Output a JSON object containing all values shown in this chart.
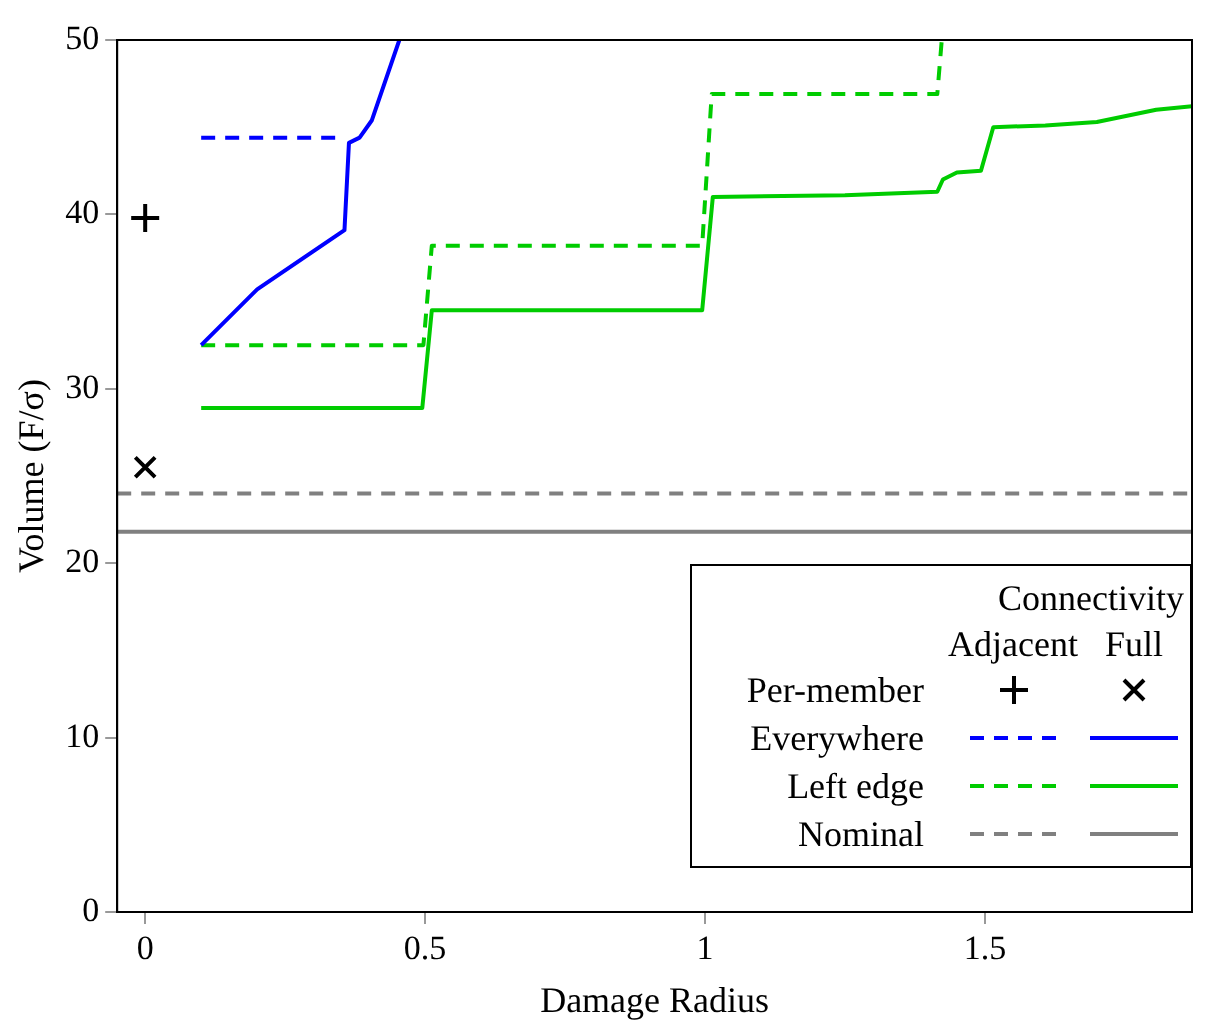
{
  "chart_data": {
    "type": "line",
    "xlabel": "Damage Radius",
    "ylabel": "Volume (F/σ)",
    "legend_title": "Connectivity",
    "annotations": [
      "Adjacent",
      "Full"
    ],
    "xlim": [
      -0.05,
      1.87
    ],
    "ylim": [
      0,
      50
    ],
    "xticks": [
      0,
      0.5,
      1,
      1.5
    ],
    "yticks": [
      0,
      10,
      20,
      30,
      40,
      50
    ],
    "grid": false,
    "legend": "bottom right",
    "series": [
      {
        "name": "Per-member",
        "type": "scatter",
        "marker": "cross",
        "color": "#000000",
        "x": [
          0
        ],
        "values": [
          39.8
        ]
      },
      {
        "type": "scatter",
        "marker": "x",
        "color": "#000000",
        "x": [
          0
        ],
        "values": [
          25.5
        ]
      },
      {
        "name": "Everywhere",
        "line_style": "dashed",
        "color": "#0000ff",
        "x": [
          0.1,
          0.35
        ],
        "values": [
          44.4,
          44.4
        ]
      },
      {
        "line_style": "solid",
        "color": "#0000ff",
        "x": [
          0.1,
          0.2,
          0.356,
          0.364,
          0.383,
          0.405,
          0.454
        ],
        "values": [
          32.5,
          35.7,
          39.1,
          44.1,
          44.4,
          45.4,
          50
        ]
      },
      {
        "name": "Left edge",
        "line_style": "dashed",
        "color": "#00cc00",
        "x": [
          0.1,
          0.497,
          0.512,
          0.995,
          1.012,
          1.415,
          1.423
        ],
        "values": [
          32.5,
          32.5,
          38.2,
          38.2,
          46.9,
          46.9,
          50
        ]
      },
      {
        "line_style": "solid",
        "color": "#00cc00",
        "x": [
          0.1,
          0.495,
          0.512,
          0.995,
          1.014,
          1.25,
          1.415,
          1.425,
          1.45,
          1.493,
          1.515,
          1.608,
          1.7,
          1.806,
          1.87
        ],
        "values": [
          28.9,
          28.9,
          34.5,
          34.5,
          41.0,
          41.1,
          41.3,
          42.0,
          42.4,
          42.5,
          45.0,
          45.1,
          45.3,
          46.0,
          46.2
        ]
      },
      {
        "name": "Nominal",
        "line_style": "dashed",
        "color": "#808080",
        "x": [
          -0.05,
          1.87
        ],
        "values": [
          24.0,
          24.0
        ]
      },
      {
        "line_style": "solid",
        "color": "#808080",
        "x": [
          -0.05,
          1.87
        ],
        "values": [
          21.8,
          21.8
        ]
      }
    ]
  }
}
